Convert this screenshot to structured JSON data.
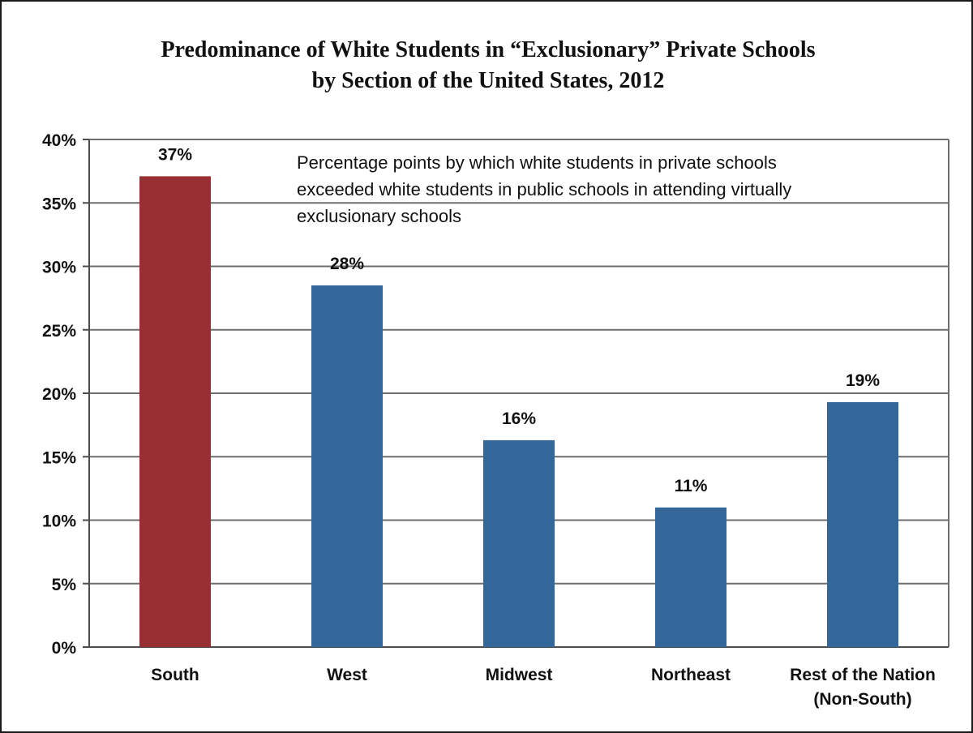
{
  "chart_data": {
    "type": "bar",
    "title": [
      "Predominance of White Students in “Exclusionary” Private Schools",
      "by Section of the United States, 2012"
    ],
    "annotation": [
      "Percentage points by which white students in private schools",
      "exceeded white students in public schools in attending virtually",
      "exclusionary schools"
    ],
    "categories": [
      [
        "South"
      ],
      [
        "West"
      ],
      [
        "Midwest"
      ],
      [
        "Northeast"
      ],
      [
        "Rest of the Nation",
        "(Non-South)"
      ]
    ],
    "values": [
      37.1,
      28.5,
      16.3,
      11.0,
      19.3
    ],
    "data_labels": [
      "37%",
      "28%",
      "16%",
      "11%",
      "19%"
    ],
    "bar_colors": [
      "#982f33",
      "#33679a",
      "#33679a",
      "#33679a",
      "#33679a"
    ],
    "ylim": [
      0,
      40
    ],
    "yticks": [
      0,
      5,
      10,
      15,
      20,
      25,
      30,
      35,
      40
    ],
    "ytick_labels": [
      "0%",
      "5%",
      "10%",
      "15%",
      "20%",
      "25%",
      "30%",
      "35%",
      "40%"
    ],
    "grid": true,
    "xlabel": "",
    "ylabel": ""
  },
  "colors": {
    "grid": "#6e6e6e",
    "axis": "#4d4d4d",
    "text": "#111111"
  }
}
